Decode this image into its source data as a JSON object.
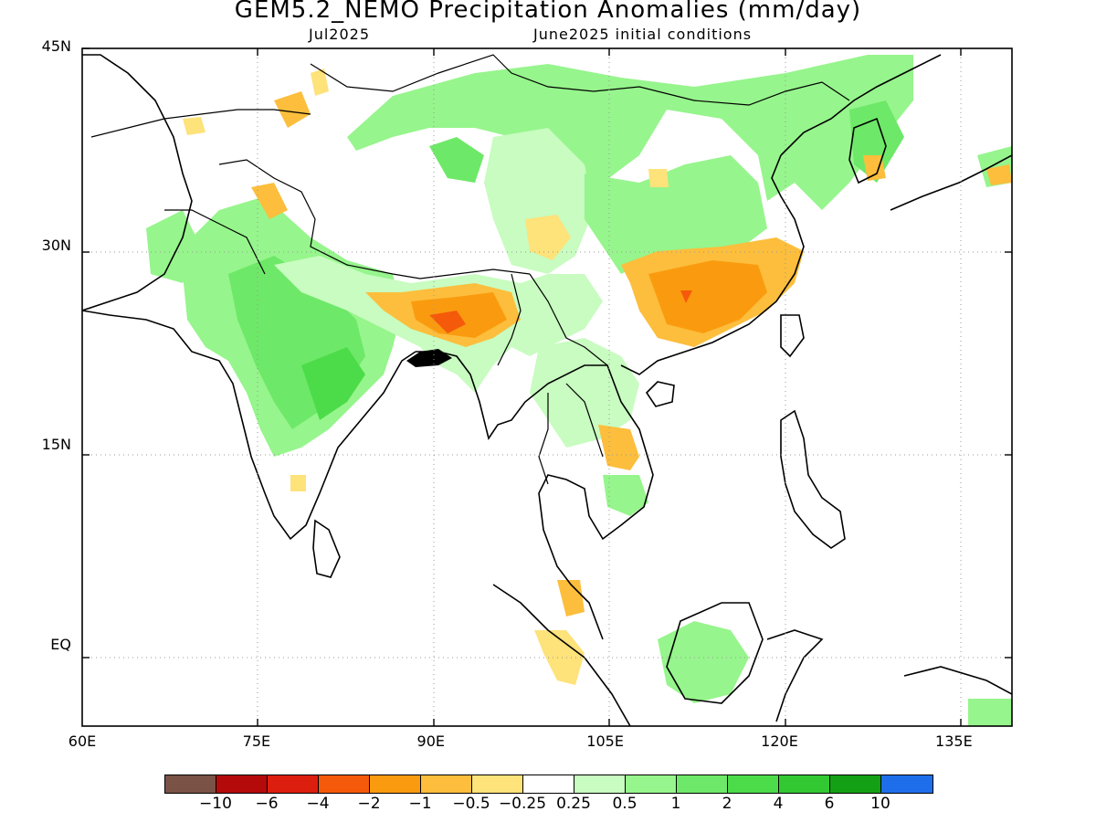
{
  "map": {
    "title": "GEM5.2_NEMO Precipitation Anomalies (mm/day)",
    "subtitle_left": "Jul2025",
    "subtitle_right": "June2025 initial conditions",
    "extent": {
      "lon": [
        60,
        140
      ],
      "lat": [
        -6,
        45
      ]
    },
    "lat_ticks": [
      {
        "value": 45,
        "label": "45N"
      },
      {
        "value": 30,
        "label": "30N"
      },
      {
        "value": 15,
        "label": "15N"
      },
      {
        "value": 0,
        "label": "EQ"
      }
    ],
    "lon_ticks": [
      {
        "value": 60,
        "label": "60E"
      },
      {
        "value": 75,
        "label": "75E"
      },
      {
        "value": 90,
        "label": "90E"
      },
      {
        "value": 105,
        "label": "105E"
      },
      {
        "value": 120,
        "label": "120E"
      },
      {
        "value": 135,
        "label": "135E"
      }
    ],
    "grid": true,
    "colorbar": {
      "colors": [
        "#7a5246",
        "#b40a0a",
        "#dc1e0f",
        "#f55a0a",
        "#fa9b0f",
        "#fcbe3c",
        "#fee27a",
        "#ffffff",
        "#c8fcc0",
        "#96f58c",
        "#6ee868",
        "#4cdc4a",
        "#32c832",
        "#14a014",
        "#1e6eeb"
      ],
      "labels": [
        "−10",
        "−6",
        "−4",
        "−2",
        "−1",
        "−0.5",
        "−0.25",
        "0.25",
        "0.5",
        "1",
        "2",
        "4",
        "6",
        "10"
      ]
    }
  }
}
